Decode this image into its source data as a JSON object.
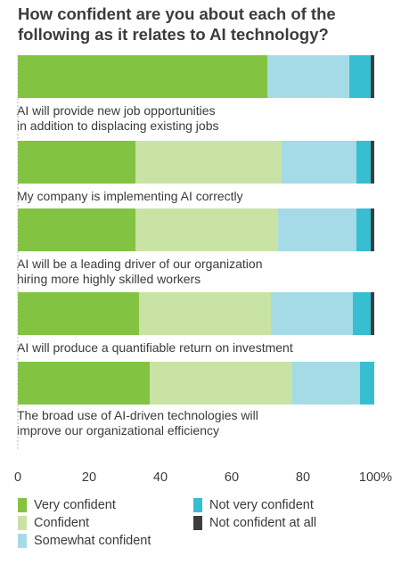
{
  "chart_data": {
    "type": "bar",
    "orientation": "horizontal",
    "stacked": true,
    "title": "How confident are you about each of the following as it relates to AI technology?",
    "categories": [
      [
        "AI will provide new job opportunities",
        "in addition to displacing existing jobs"
      ],
      [
        "My company is implementing AI correctly"
      ],
      [
        "AI will be a leading driver of our organization",
        "hiring more highly skilled workers"
      ],
      [
        "AI will produce a quantifiable return on investment"
      ],
      [
        "The broad use of AI-driven technologies will",
        "improve our organizational efficiency"
      ]
    ],
    "series": [
      {
        "name": "Very confident",
        "color": "#82c341",
        "values": [
          70,
          33,
          33,
          34,
          37
        ]
      },
      {
        "name": "Confident",
        "color": "#c9e3a4",
        "values": [
          0,
          41,
          40,
          37,
          40
        ]
      },
      {
        "name": "Somewhat confident",
        "color": "#a5dbe6",
        "values": [
          23,
          21,
          22,
          23,
          19
        ]
      },
      {
        "name": "Not very confident",
        "color": "#37bed1",
        "values": [
          6,
          4,
          4,
          5,
          4
        ]
      },
      {
        "name": "Not confident at all",
        "color": "#3d3d3d",
        "values": [
          1,
          1,
          1,
          1,
          0
        ]
      }
    ],
    "xlim": [
      0,
      100
    ],
    "xticks": [
      "0",
      "20",
      "40",
      "60",
      "80",
      "100%"
    ],
    "legend_position": "bottom"
  }
}
